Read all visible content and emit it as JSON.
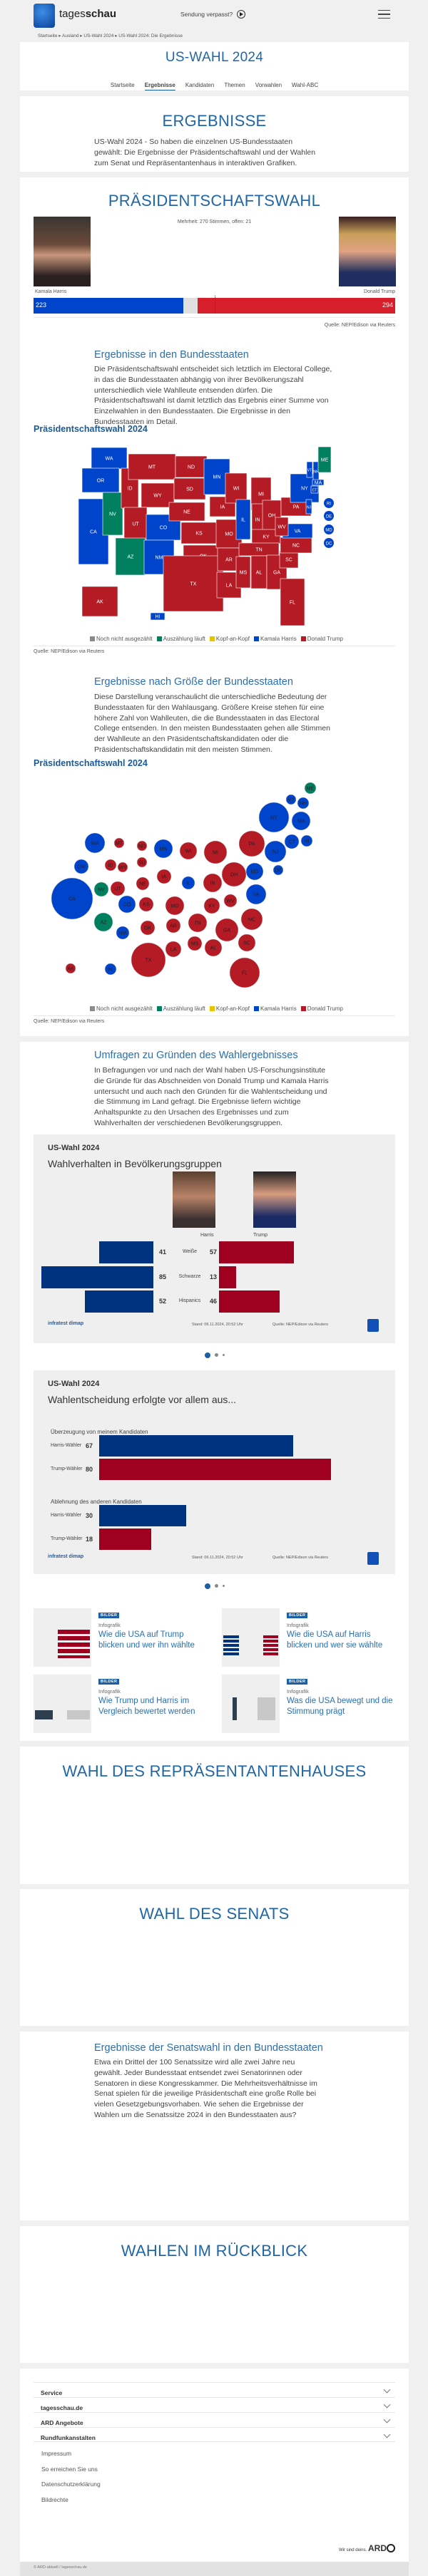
{
  "header": {
    "brand_light": "tages",
    "brand_bold": "schau",
    "missed_show": "Sendung verpasst?",
    "menu_icon": "hamburger-icon",
    "play_icon": "play-circle-icon"
  },
  "breadcrumb": [
    "Startseite",
    "Ausland",
    "US-Wahl 2024",
    "US-Wahl 2024: Die Ergebnisse"
  ],
  "hero": {
    "title": "US-WAHL 2024",
    "tabs": [
      "Startseite",
      "Ergebnisse",
      "Kandidaten",
      "Themen",
      "Vorwahlen",
      "Wahl-ABC"
    ],
    "active_tab": "Ergebnisse"
  },
  "ergebnisse": {
    "title": "ERGEBNISSE",
    "text": "US-Wahl 2024 - So haben die einzelnen US-Bundesstaaten gewählt: Die Ergebnisse der Präsidentschaftswahl und der Wahlen zum Senat und Repräsentantenhaus in interaktiven Grafiken."
  },
  "praesident": {
    "title": "PRÄSIDENTSCHAFTSWAHL",
    "majority": "Mehrheit: 270 Stimmen, offen: 21",
    "harris": {
      "name": "Kamala Harris",
      "votes": 223,
      "color": "#0044cc"
    },
    "trump": {
      "name": "Donald Trump",
      "votes": 294,
      "color": "#d71f2b"
    },
    "open": 21,
    "majority_votes": 270,
    "total": 538,
    "source": "Quelle: NEP/Edison via Reuters",
    "states_heading": "Ergebnisse in den Bundesstaaten",
    "states_text": "Die Präsidentschaftswahl entscheidet sich letztlich im Electoral College, in das die Bundesstaaten abhängig von ihrer Bevölkerungszahl unterschiedlich viele Wahlleute entsenden dürfen. Die Präsidentschaftswahl ist damit letztlich das Ergebnis einer Summe von Einzelwahlen in den Bundesstaaten. Die Ergebnisse in den Bundesstaaten im Detail.",
    "map_title": "Präsidentschaftswahl 2024",
    "size_heading": "Ergebnisse nach Größe der Bundesstaaten",
    "size_text": "Diese Darstellung veranschaulicht die unterschiedliche Bedeutung der Bundesstaaten für den Wahlausgang. Größere Kreise stehen für eine höhere Zahl von Wahlleuten, die die Bundesstaaten in das Electoral College entsenden. In den meisten Bundesstaaten gehen alle Stimmen der Wahlleute an den Präsidentschaftskandidaten oder die Präsidentschaftskandidatin mit den meisten Stimmen.",
    "bubble_title": "Präsidentschaftswahl 2024"
  },
  "legend": [
    {
      "label": "Noch nicht ausgezählt",
      "color": "#8a8a8a"
    },
    {
      "label": "Auszählung läuft",
      "color": "#00805f"
    },
    {
      "label": "Kopf-an-Kopf",
      "color": "#e8c300"
    },
    {
      "label": "Kamala Harris",
      "color": "#0044cc"
    },
    {
      "label": "Donald Trump",
      "color": "#b41b25"
    }
  ],
  "map_colors": {
    "D": "#0044cc",
    "R": "#b41b25",
    "C": "#00805f"
  },
  "states": [
    {
      "abbr": "WA",
      "r": "D"
    },
    {
      "abbr": "OR",
      "r": "D"
    },
    {
      "abbr": "CA",
      "r": "D"
    },
    {
      "abbr": "NV",
      "r": "C"
    },
    {
      "abbr": "ID",
      "r": "R"
    },
    {
      "abbr": "MT",
      "r": "R"
    },
    {
      "abbr": "WY",
      "r": "R"
    },
    {
      "abbr": "UT",
      "r": "R"
    },
    {
      "abbr": "AZ",
      "r": "C"
    },
    {
      "abbr": "CO",
      "r": "D"
    },
    {
      "abbr": "NM",
      "r": "D"
    },
    {
      "abbr": "ND",
      "r": "R"
    },
    {
      "abbr": "SD",
      "r": "R"
    },
    {
      "abbr": "NE",
      "r": "R"
    },
    {
      "abbr": "KS",
      "r": "R"
    },
    {
      "abbr": "OK",
      "r": "R"
    },
    {
      "abbr": "TX",
      "r": "R"
    },
    {
      "abbr": "MN",
      "r": "D"
    },
    {
      "abbr": "IA",
      "r": "R"
    },
    {
      "abbr": "MO",
      "r": "R"
    },
    {
      "abbr": "AR",
      "r": "R"
    },
    {
      "abbr": "LA",
      "r": "R"
    },
    {
      "abbr": "WI",
      "r": "R"
    },
    {
      "abbr": "IL",
      "r": "D"
    },
    {
      "abbr": "MI",
      "r": "R"
    },
    {
      "abbr": "IN",
      "r": "R"
    },
    {
      "abbr": "OH",
      "r": "R"
    },
    {
      "abbr": "KY",
      "r": "R"
    },
    {
      "abbr": "TN",
      "r": "R"
    },
    {
      "abbr": "MS",
      "r": "R"
    },
    {
      "abbr": "AL",
      "r": "R"
    },
    {
      "abbr": "GA",
      "r": "R"
    },
    {
      "abbr": "FL",
      "r": "R"
    },
    {
      "abbr": "SC",
      "r": "R"
    },
    {
      "abbr": "NC",
      "r": "R"
    },
    {
      "abbr": "VA",
      "r": "D"
    },
    {
      "abbr": "WV",
      "r": "R"
    },
    {
      "abbr": "PA",
      "r": "R"
    },
    {
      "abbr": "NY",
      "r": "D"
    },
    {
      "abbr": "VT",
      "r": "D"
    },
    {
      "abbr": "NH",
      "r": "D"
    },
    {
      "abbr": "ME",
      "r": "C"
    },
    {
      "abbr": "MA",
      "r": "D"
    },
    {
      "abbr": "CT",
      "r": "D"
    },
    {
      "abbr": "NJ",
      "r": "D"
    },
    {
      "abbr": "RI",
      "r": "D"
    },
    {
      "abbr": "DE",
      "r": "D"
    },
    {
      "abbr": "MD",
      "r": "D"
    },
    {
      "abbr": "DC",
      "r": "D"
    },
    {
      "abbr": "AK",
      "r": "R"
    },
    {
      "abbr": "HI",
      "r": "D"
    }
  ],
  "umfragen": {
    "heading": "Umfragen zu Gründen des Wahlergebnisses",
    "text": "In Befragungen vor und nach der Wahl haben US-Forschungsinstitute die Gründe für das Abschneiden von Donald Trump und Kamala Harris untersucht und auch nach den Gründen für die Wahlentscheidung und die Stimmung im Land gefragt. Die Ergebnisse liefern wichtige Anhaltspunkte zu den Ursachen des Ergebnisses und zum Wahlverhalten der verschiedenen Bevölkerungsgruppen."
  },
  "chart_data": [
    {
      "type": "bar",
      "kicker": "US-Wahl 2024",
      "title": "Wahlverhalten in Bevölkerungsgruppen",
      "categories": [
        "Weiße",
        "Schwarze",
        "Hispanics"
      ],
      "series": [
        {
          "name": "Harris",
          "values": [
            41,
            85,
            52
          ],
          "color": "#00337f"
        },
        {
          "name": "Trump",
          "values": [
            57,
            13,
            46
          ],
          "color": "#a00020"
        }
      ],
      "brand": "infratest dimap",
      "stand": "Stand:  06.11.2024, 20:52 Uhr",
      "source": "Quelle: NEP/Edison via Reuters"
    },
    {
      "type": "bar",
      "kicker": "US-Wahl 2024",
      "title": "Wahlentscheidung erfolgte vor allem aus...",
      "groups": [
        {
          "label": "Überzeugung von meinem Kandidaten",
          "rows": [
            {
              "label": "Harris-Wähler",
              "value": 67
            },
            {
              "label": "Trump-Wähler",
              "value": 80
            }
          ]
        },
        {
          "label": "Ablehnung des anderen Kandidaten",
          "rows": [
            {
              "label": "Harris-Wähler",
              "value": 30
            },
            {
              "label": "Trump-Wähler",
              "value": 18
            }
          ]
        }
      ],
      "brand": "infratest dimap",
      "stand": "Stand:  06.11.2024, 20:52 Uhr",
      "source": "Quelle: NEP/Edison via Reuters"
    }
  ],
  "teasers": [
    {
      "badge": "BILDER",
      "kicker": "Infografik",
      "title": "Wie die USA auf Trump blicken und wer ihn wählte"
    },
    {
      "badge": "BILDER",
      "kicker": "Infografik",
      "title": "Wie die USA auf Harris blicken und wer sie wählte"
    },
    {
      "badge": "BILDER",
      "kicker": "Infografik",
      "title": "Wie Trump und Harris im Vergleich bewertet werden"
    },
    {
      "badge": "BILDER",
      "kicker": "Infografik",
      "title": "Was die USA bewegt und die Stimmung prägt"
    }
  ],
  "repraesentanten": {
    "title": "WAHL DES REPRÄSENTANTENHAUSES"
  },
  "senat": {
    "title": "WAHL DES SENATS",
    "heading": "Ergebnisse der Senatswahl in den Bundesstaaten",
    "text": "Etwa ein Drittel der 100 Senatssitze wird alle zwei Jahre neu gewählt. Jeder Bundesstaat entsendet zwei Senatorinnen oder Senatoren in diese Kongresskammer. Die Mehrheitsverhältnisse im Senat spielen für die jeweilige Präsidentschaft eine große Rolle bei vielen Gesetzgebungsvorhaben. Wie sehen die Ergebnisse der Wahlen um die Senatssitze 2024 in den Bundesstaaten aus?"
  },
  "rueckblick": {
    "title": "WAHLEN IM RÜCKBLICK"
  },
  "footer": {
    "accordion": [
      "Service",
      "tagesschau.de",
      "ARD Angebote",
      "Rundfunkanstalten"
    ],
    "links": [
      "Impressum",
      "So erreichen Sie uns",
      "Datenschutzerklärung",
      "Bildrechte"
    ],
    "slogan": "Wir sind deins.",
    "ard": "ARD",
    "copyright": "© ARD-aktuell / tagesschau.de"
  }
}
